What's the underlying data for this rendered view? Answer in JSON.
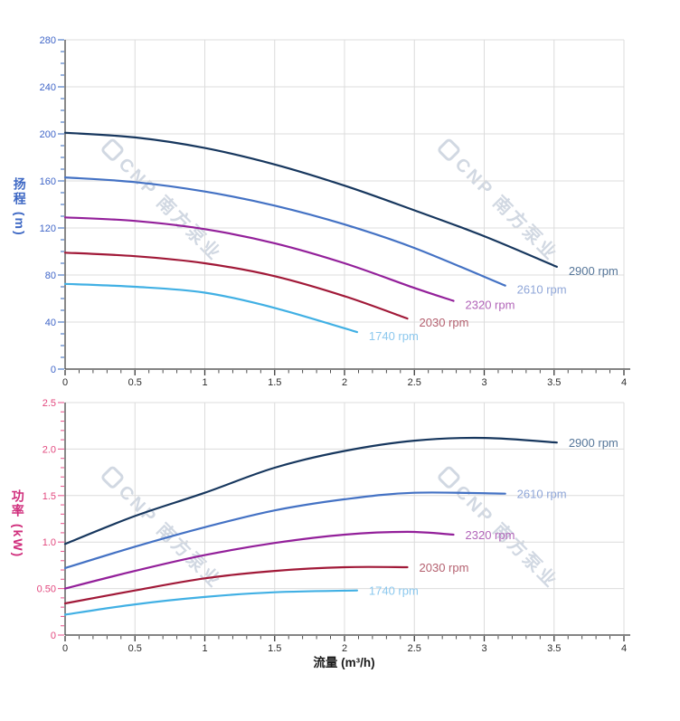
{
  "page": {
    "background": "#ffffff"
  },
  "watermark": {
    "logo_icon": "cnp-logo",
    "text": "CNP 南方泵业"
  },
  "x_axis": {
    "title": "流量 (m³/h)",
    "min": 0,
    "max": 4,
    "major_step": 0.5,
    "minor_step": 0.1,
    "tick_labels": [
      "0",
      "0.5",
      "1",
      "1.5",
      "2",
      "2.5",
      "3",
      "3.5",
      "4"
    ],
    "tick_color": "#3a3a3a",
    "label_color": "#2b2b2b"
  },
  "chart_data": [
    {
      "type": "line",
      "name": "head-curves",
      "ylabel": "扬程 (m)",
      "xlabel": "流量 (m³/h)",
      "xlim": [
        0,
        4
      ],
      "ylim": [
        0,
        280
      ],
      "ytick_step": 40,
      "yminor_step": 10,
      "ytick_labels": [
        "0",
        "40",
        "80",
        "120",
        "160",
        "200",
        "240",
        "280"
      ],
      "axis_color": "#4472C4",
      "tick_label_color": "#4066C8",
      "grid": true,
      "legend_position": "at-line-end",
      "series": [
        {
          "name": "2900 rpm",
          "color": "#17375E",
          "label_color": "#567699",
          "points": [
            [
              0,
              201
            ],
            [
              0.5,
              197
            ],
            [
              1,
              188
            ],
            [
              1.5,
              174
            ],
            [
              2,
              156
            ],
            [
              2.5,
              135
            ],
            [
              3,
              113
            ],
            [
              3.52,
              87
            ]
          ]
        },
        {
          "name": "2610 rpm",
          "color": "#4472C4",
          "label_color": "#8FA6D8",
          "points": [
            [
              0,
              163
            ],
            [
              0.5,
              159
            ],
            [
              1,
              151
            ],
            [
              1.5,
              139
            ],
            [
              2,
              123
            ],
            [
              2.5,
              103
            ],
            [
              3.15,
              71
            ]
          ]
        },
        {
          "name": "2320 rpm",
          "color": "#93209A",
          "label_color": "#B164B8",
          "points": [
            [
              0,
              129
            ],
            [
              0.5,
              126
            ],
            [
              1,
              119
            ],
            [
              1.5,
              107
            ],
            [
              2,
              90
            ],
            [
              2.5,
              69
            ],
            [
              2.78,
              58
            ]
          ]
        },
        {
          "name": "2030 rpm",
          "color": "#A11938",
          "label_color": "#B4606F",
          "points": [
            [
              0,
              99
            ],
            [
              0.5,
              96
            ],
            [
              1,
              90
            ],
            [
              1.5,
              79
            ],
            [
              2,
              62
            ],
            [
              2.45,
              43
            ]
          ]
        },
        {
          "name": "1740 rpm",
          "color": "#41B0E4",
          "label_color": "#8CC8EE",
          "points": [
            [
              0,
              72.5
            ],
            [
              0.5,
              70
            ],
            [
              1,
              65
            ],
            [
              1.5,
              52
            ],
            [
              2.09,
              31.5
            ]
          ]
        }
      ]
    },
    {
      "type": "line",
      "name": "power-curves",
      "ylabel": "功率 (kW)",
      "xlabel": "流量 (m³/h)",
      "xlim": [
        0,
        4
      ],
      "ylim": [
        0,
        2.5
      ],
      "ytick_step": 0.5,
      "yminor_step": 0.1,
      "ytick_labels": [
        "0",
        "0.50",
        "1.0",
        "1.5",
        "2.0",
        "2.5"
      ],
      "axis_color": "#EC5F95",
      "tick_label_color": "#E2487E",
      "grid": true,
      "legend_position": "at-line-end",
      "series": [
        {
          "name": "2900 rpm",
          "color": "#17375E",
          "label_color": "#567699",
          "points": [
            [
              0,
              0.98
            ],
            [
              0.5,
              1.28
            ],
            [
              1,
              1.53
            ],
            [
              1.5,
              1.8
            ],
            [
              2,
              1.98
            ],
            [
              2.5,
              2.09
            ],
            [
              3,
              2.12
            ],
            [
              3.52,
              2.07
            ]
          ]
        },
        {
          "name": "2610 rpm",
          "color": "#4472C4",
          "label_color": "#8FA6D8",
          "points": [
            [
              0,
              0.72
            ],
            [
              0.5,
              0.95
            ],
            [
              1,
              1.16
            ],
            [
              1.5,
              1.34
            ],
            [
              2,
              1.46
            ],
            [
              2.5,
              1.53
            ],
            [
              3.15,
              1.52
            ]
          ]
        },
        {
          "name": "2320 rpm",
          "color": "#93209A",
          "label_color": "#B164B8",
          "points": [
            [
              0,
              0.5
            ],
            [
              0.5,
              0.69
            ],
            [
              1,
              0.86
            ],
            [
              1.5,
              0.99
            ],
            [
              2,
              1.08
            ],
            [
              2.45,
              1.11
            ],
            [
              2.78,
              1.08
            ]
          ]
        },
        {
          "name": "2030 rpm",
          "color": "#A11938",
          "label_color": "#B4606F",
          "points": [
            [
              0,
              0.34
            ],
            [
              0.5,
              0.48
            ],
            [
              1,
              0.61
            ],
            [
              1.5,
              0.69
            ],
            [
              2,
              0.73
            ],
            [
              2.45,
              0.73
            ]
          ]
        },
        {
          "name": "1740 rpm",
          "color": "#41B0E4",
          "label_color": "#8CC8EE",
          "points": [
            [
              0,
              0.22
            ],
            [
              0.5,
              0.33
            ],
            [
              1,
              0.41
            ],
            [
              1.5,
              0.46
            ],
            [
              2.09,
              0.48
            ]
          ]
        }
      ]
    }
  ]
}
